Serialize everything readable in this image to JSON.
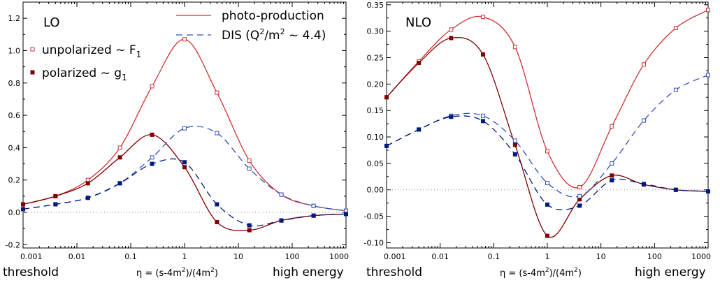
{
  "chart_data": [
    {
      "type": "line",
      "title": "LO",
      "xscale": "log",
      "xlim": [
        0.001,
        1000
      ],
      "ylim": [
        -0.22,
        1.3
      ],
      "grid": false,
      "xticks": [
        "0.001",
        "0.01",
        "0.1",
        "1",
        "10",
        "100",
        "1000"
      ],
      "yticks": [
        -0.2,
        0.0,
        0.2,
        0.4,
        0.6,
        0.8,
        1.0,
        1.2
      ],
      "ytick_labels": [
        "-0.2",
        "0.0",
        "0.2",
        "0.4",
        "0.6",
        "0.8",
        "1.0",
        "1.2"
      ],
      "footer_left": "threshold",
      "footer_right": "high energy",
      "xlabel_pre": "η = (s-4m",
      "xlabel_sup": "2",
      "xlabel_mid": ")/(4m",
      "xlabel_post": ")",
      "legend": {
        "photo": "photo-production",
        "dis_pre": "DIS (Q",
        "dis_sup": "2",
        "dis_post": "/m",
        "dis_sup2": "2",
        "dis_end": " ~ 4.4)",
        "unpol_pre": "unpolarized ~ F",
        "unpol_sub": "1",
        "pol_pre": "polarized ~ g",
        "pol_sub": "1"
      },
      "series": [
        {
          "kind": "photo-unpolarized",
          "x": [
            0.001,
            0.004,
            0.016,
            0.063,
            0.25,
            1,
            4,
            16,
            63,
            250,
            1000
          ],
          "y": [
            0.05,
            0.1,
            0.2,
            0.4,
            0.78,
            1.07,
            0.74,
            0.32,
            0.11,
            0.04,
            0.01
          ]
        },
        {
          "kind": "photo-polarized",
          "x": [
            0.001,
            0.004,
            0.016,
            0.063,
            0.25,
            1,
            4,
            16,
            63,
            250,
            1000
          ],
          "y": [
            0.05,
            0.1,
            0.18,
            0.34,
            0.48,
            0.28,
            -0.06,
            -0.11,
            -0.05,
            -0.02,
            -0.01
          ]
        },
        {
          "kind": "dis-unpolarized",
          "x": [
            0.001,
            0.004,
            0.016,
            0.063,
            0.25,
            1,
            4,
            16,
            63,
            250,
            1000
          ],
          "y": [
            0.02,
            0.05,
            0.09,
            0.18,
            0.34,
            0.52,
            0.49,
            0.27,
            0.11,
            0.04,
            0.01
          ]
        },
        {
          "kind": "dis-polarized",
          "x": [
            0.001,
            0.004,
            0.016,
            0.063,
            0.25,
            1,
            4,
            16,
            63,
            250,
            1000
          ],
          "y": [
            0.02,
            0.05,
            0.09,
            0.18,
            0.3,
            0.31,
            0.05,
            -0.08,
            -0.05,
            -0.02,
            -0.01
          ]
        }
      ]
    },
    {
      "type": "line",
      "title": "NLO",
      "xscale": "log",
      "xlim": [
        0.001,
        1000
      ],
      "ylim": [
        -0.11,
        0.355
      ],
      "grid": false,
      "xticks": [
        "0.001",
        "0.01",
        "0.1",
        "1",
        "10",
        "100",
        "1000"
      ],
      "yticks": [
        -0.1,
        -0.05,
        0.0,
        0.05,
        0.1,
        0.15,
        0.2,
        0.25,
        0.3,
        0.35
      ],
      "ytick_labels": [
        "-0.10",
        "-0.05",
        "0.00",
        "0.05",
        "0.10",
        "0.15",
        "0.20",
        "0.25",
        "0.30",
        "0.35"
      ],
      "footer_left": "threshold",
      "footer_right": "high energy",
      "xlabel_pre": "η = (s-4m",
      "xlabel_sup": "2",
      "xlabel_mid": ")/(4m",
      "xlabel_post": ")",
      "series": [
        {
          "kind": "photo-unpolarized",
          "x": [
            0.001,
            0.004,
            0.016,
            0.063,
            0.25,
            1,
            4,
            16,
            63,
            250,
            1000
          ],
          "y": [
            0.175,
            0.243,
            0.303,
            0.327,
            0.27,
            0.073,
            0.005,
            0.12,
            0.237,
            0.306,
            0.34
          ]
        },
        {
          "kind": "photo-polarized",
          "x": [
            0.001,
            0.004,
            0.016,
            0.063,
            0.25,
            1,
            4,
            16,
            63,
            250,
            1000
          ],
          "y": [
            0.175,
            0.24,
            0.287,
            0.256,
            0.085,
            -0.087,
            -0.018,
            0.027,
            0.01,
            0.0,
            -0.003
          ]
        },
        {
          "kind": "dis-unpolarized",
          "x": [
            0.001,
            0.004,
            0.016,
            0.063,
            0.25,
            1,
            4,
            16,
            63,
            250,
            1000
          ],
          "y": [
            0.083,
            0.114,
            0.14,
            0.14,
            0.093,
            0.013,
            -0.012,
            0.05,
            0.131,
            0.189,
            0.217
          ]
        },
        {
          "kind": "dis-polarized",
          "x": [
            0.001,
            0.004,
            0.016,
            0.063,
            0.25,
            1,
            4,
            16,
            63,
            250,
            1000
          ],
          "y": [
            0.083,
            0.114,
            0.138,
            0.13,
            0.067,
            -0.028,
            -0.03,
            0.018,
            0.011,
            0.0,
            -0.003
          ]
        }
      ]
    }
  ],
  "colors": {
    "photo_unpolarized": "#d03030",
    "photo_polarized": "#800000",
    "dis_unpolarized": "#3050c0",
    "dis_polarized": "#001a80",
    "zero_line": "#888888"
  }
}
